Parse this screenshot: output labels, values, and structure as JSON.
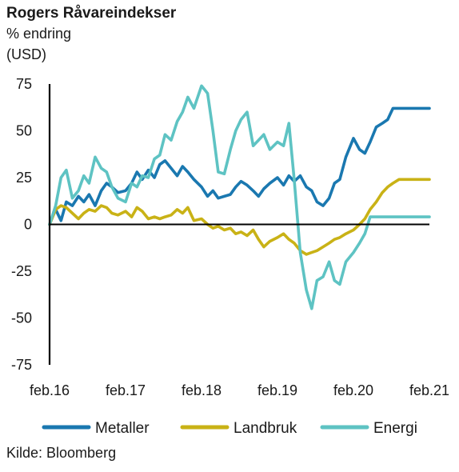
{
  "header": {
    "title": "Rogers Råvareindekser",
    "subtitle1": "% endring",
    "subtitle2": "(USD)"
  },
  "source": "Kilde: Bloomberg",
  "colors": {
    "Metaller": "#1a78b0",
    "Landbruk": "#c9b216",
    "Energi": "#5ec3c3",
    "axis": "#000000"
  },
  "chart_data": {
    "type": "line",
    "title": "Rogers Råvareindekser",
    "ylabel": "% endring (USD)",
    "xlabel": "",
    "ylim": [
      -75,
      75
    ],
    "xlim": [
      2016.0,
      2021.0
    ],
    "yticks": [
      75,
      50,
      25,
      0,
      -25,
      -50,
      -75
    ],
    "yticklabels": [
      "75",
      "50",
      "25",
      "0",
      "-25",
      "-50",
      "-75"
    ],
    "xticks": [
      2016.0,
      2017.0,
      2018.0,
      2019.0,
      2020.0,
      2021.0
    ],
    "xticklabels": [
      "feb.16",
      "feb.17",
      "feb.18",
      "feb.19",
      "feb.20",
      "feb.21"
    ],
    "grid": false,
    "legend_position": "bottom",
    "series": [
      {
        "name": "Metaller",
        "x": [
          2016.0,
          2016.08,
          2016.15,
          2016.22,
          2016.3,
          2016.38,
          2016.45,
          2016.52,
          2016.6,
          2016.68,
          2016.75,
          2016.82,
          2016.9,
          2017.0,
          2017.08,
          2017.15,
          2017.22,
          2017.3,
          2017.38,
          2017.45,
          2017.52,
          2017.6,
          2017.68,
          2017.75,
          2017.82,
          2017.9,
          2018.0,
          2018.08,
          2018.15,
          2018.22,
          2018.3,
          2018.38,
          2018.45,
          2018.52,
          2018.6,
          2018.68,
          2018.75,
          2018.82,
          2018.9,
          2019.0,
          2019.08,
          2019.15,
          2019.22,
          2019.3,
          2019.38,
          2019.45,
          2019.52,
          2019.6,
          2019.68,
          2019.75,
          2019.82,
          2019.9,
          2020.0,
          2020.08,
          2020.15,
          2020.22,
          2020.3,
          2020.38,
          2020.45,
          2020.52,
          2020.6,
          2020.68,
          2020.75,
          2020.82,
          2020.9,
          2021.0
        ],
        "values": [
          0,
          8,
          2,
          12,
          10,
          15,
          12,
          16,
          10,
          18,
          22,
          20,
          17,
          18,
          22,
          28,
          24,
          29,
          25,
          32,
          34,
          30,
          26,
          31,
          28,
          24,
          20,
          15,
          18,
          14,
          15,
          16,
          20,
          23,
          21,
          18,
          15,
          19,
          22,
          25,
          21,
          26,
          23,
          26,
          20,
          18,
          12,
          10,
          14,
          22,
          24,
          36,
          46,
          40,
          38,
          44,
          52,
          54,
          56,
          62,
          62,
          62,
          62,
          62,
          62,
          62
        ]
      },
      {
        "name": "Landbruk",
        "x": [
          2016.0,
          2016.08,
          2016.15,
          2016.22,
          2016.3,
          2016.38,
          2016.45,
          2016.52,
          2016.6,
          2016.68,
          2016.75,
          2016.82,
          2016.9,
          2017.0,
          2017.08,
          2017.15,
          2017.22,
          2017.3,
          2017.38,
          2017.45,
          2017.52,
          2017.6,
          2017.68,
          2017.75,
          2017.82,
          2017.9,
          2018.0,
          2018.08,
          2018.15,
          2018.22,
          2018.3,
          2018.38,
          2018.45,
          2018.52,
          2018.6,
          2018.68,
          2018.75,
          2018.82,
          2018.9,
          2019.0,
          2019.08,
          2019.15,
          2019.22,
          2019.3,
          2019.38,
          2019.45,
          2019.52,
          2019.6,
          2019.68,
          2019.75,
          2019.82,
          2019.9,
          2020.0,
          2020.08,
          2020.15,
          2020.22,
          2020.3,
          2020.38,
          2020.45,
          2020.52,
          2020.6,
          2020.68,
          2020.75,
          2020.82,
          2020.9,
          2021.0
        ],
        "values": [
          0,
          8,
          10,
          9,
          6,
          3,
          6,
          8,
          7,
          10,
          9,
          6,
          5,
          7,
          4,
          9,
          7,
          3,
          4,
          3,
          4,
          5,
          8,
          6,
          9,
          2,
          3,
          0,
          -2,
          -1,
          -3,
          -2,
          -5,
          -4,
          -6,
          -3,
          -8,
          -12,
          -9,
          -7,
          -5,
          -8,
          -10,
          -14,
          -16,
          -15,
          -14,
          -12,
          -10,
          -8,
          -7,
          -5,
          -3,
          0,
          3,
          8,
          12,
          17,
          20,
          22,
          24,
          24,
          24,
          24,
          24,
          24
        ]
      },
      {
        "name": "Energi",
        "x": [
          2016.0,
          2016.08,
          2016.15,
          2016.22,
          2016.3,
          2016.38,
          2016.45,
          2016.52,
          2016.6,
          2016.68,
          2016.75,
          2016.82,
          2016.9,
          2017.0,
          2017.08,
          2017.15,
          2017.22,
          2017.3,
          2017.38,
          2017.45,
          2017.52,
          2017.6,
          2017.68,
          2017.75,
          2017.82,
          2017.9,
          2018.0,
          2018.08,
          2018.15,
          2018.22,
          2018.3,
          2018.38,
          2018.45,
          2018.52,
          2018.6,
          2018.68,
          2018.75,
          2018.82,
          2018.9,
          2019.0,
          2019.08,
          2019.15,
          2019.22,
          2019.3,
          2019.38,
          2019.45,
          2019.52,
          2019.6,
          2019.68,
          2019.75,
          2019.82,
          2019.9,
          2020.0,
          2020.08,
          2020.15,
          2020.22,
          2020.3,
          2020.38,
          2020.45,
          2020.52,
          2020.6,
          2020.68,
          2020.75,
          2020.82,
          2020.9,
          2021.0
        ],
        "values": [
          0,
          10,
          25,
          29,
          14,
          18,
          26,
          22,
          36,
          30,
          28,
          20,
          14,
          12,
          22,
          20,
          26,
          25,
          35,
          37,
          48,
          45,
          55,
          60,
          68,
          62,
          74,
          70,
          50,
          28,
          27,
          40,
          50,
          56,
          60,
          42,
          45,
          48,
          40,
          44,
          42,
          54,
          24,
          -15,
          -35,
          -45,
          -30,
          -28,
          -20,
          -30,
          -32,
          -20,
          -15,
          -10,
          -5,
          4,
          4,
          4,
          4,
          4,
          4,
          4,
          4,
          4,
          4,
          4
        ]
      }
    ]
  }
}
